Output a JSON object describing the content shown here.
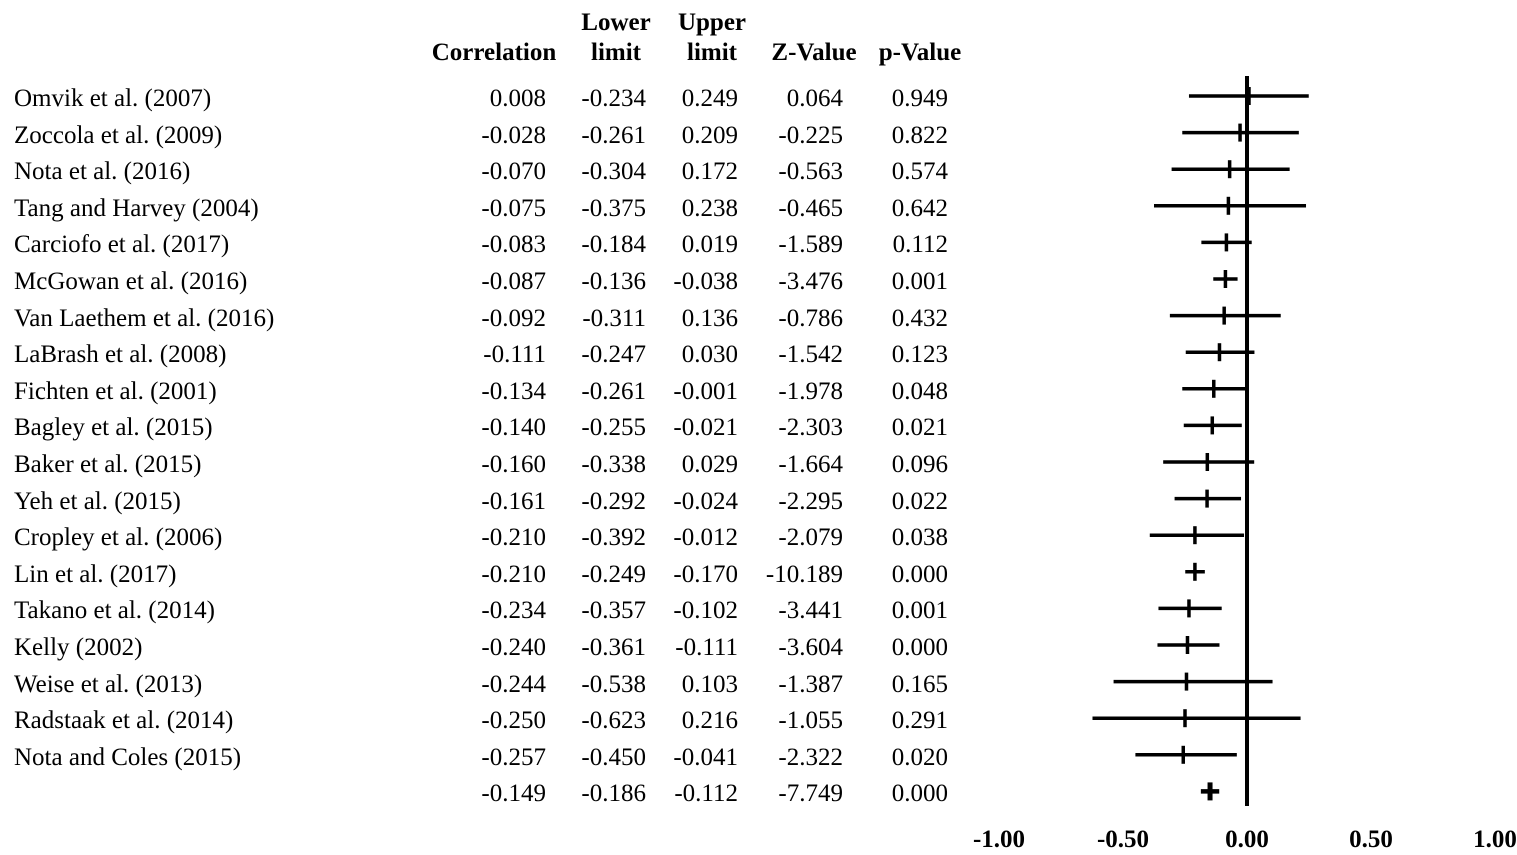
{
  "chart_data": {
    "type": "forest",
    "columns": [
      {
        "key": "correlation",
        "label": "Correlation"
      },
      {
        "key": "lower",
        "label": "Lower limit",
        "line1": "Lower",
        "line2": "limit"
      },
      {
        "key": "upper",
        "label": "Upper limit",
        "line1": "Upper",
        "line2": "limit"
      },
      {
        "key": "z",
        "label": "Z-Value"
      },
      {
        "key": "p",
        "label": "p-Value"
      }
    ],
    "rows": [
      {
        "study": "Omvik et al. (2007)",
        "correlation": "0.008",
        "lower": "-0.234",
        "upper": "0.249",
        "z": "0.064",
        "p": "0.949"
      },
      {
        "study": "Zoccola et al. (2009)",
        "correlation": "-0.028",
        "lower": "-0.261",
        "upper": "0.209",
        "z": "-0.225",
        "p": "0.822"
      },
      {
        "study": "Nota et al. (2016)",
        "correlation": "-0.070",
        "lower": "-0.304",
        "upper": "0.172",
        "z": "-0.563",
        "p": "0.574"
      },
      {
        "study": "Tang and Harvey (2004)",
        "correlation": "-0.075",
        "lower": "-0.375",
        "upper": "0.238",
        "z": "-0.465",
        "p": "0.642"
      },
      {
        "study": "Carciofo et al. (2017)",
        "correlation": "-0.083",
        "lower": "-0.184",
        "upper": "0.019",
        "z": "-1.589",
        "p": "0.112"
      },
      {
        "study": "McGowan et al. (2016)",
        "correlation": "-0.087",
        "lower": "-0.136",
        "upper": "-0.038",
        "z": "-3.476",
        "p": "0.001"
      },
      {
        "study": "Van Laethem et al. (2016)",
        "correlation": "-0.092",
        "lower": "-0.311",
        "upper": "0.136",
        "z": "-0.786",
        "p": "0.432"
      },
      {
        "study": "LaBrash et al. (2008)",
        "correlation": "-0.111",
        "lower": "-0.247",
        "upper": "0.030",
        "z": "-1.542",
        "p": "0.123"
      },
      {
        "study": "Fichten et al. (2001)",
        "correlation": "-0.134",
        "lower": "-0.261",
        "upper": "-0.001",
        "z": "-1.978",
        "p": "0.048"
      },
      {
        "study": "Bagley  et al. (2015)",
        "correlation": "-0.140",
        "lower": "-0.255",
        "upper": "-0.021",
        "z": "-2.303",
        "p": "0.021"
      },
      {
        "study": "Baker et al. (2015)",
        "correlation": "-0.160",
        "lower": "-0.338",
        "upper": "0.029",
        "z": "-1.664",
        "p": "0.096"
      },
      {
        "study": "Yeh et al. (2015)",
        "correlation": "-0.161",
        "lower": "-0.292",
        "upper": "-0.024",
        "z": "-2.295",
        "p": "0.022"
      },
      {
        "study": "Cropley et al. (2006)",
        "correlation": "-0.210",
        "lower": "-0.392",
        "upper": "-0.012",
        "z": "-2.079",
        "p": "0.038"
      },
      {
        "study": "Lin et al. (2017)",
        "correlation": "-0.210",
        "lower": "-0.249",
        "upper": "-0.170",
        "z": "-10.189",
        "p": "0.000"
      },
      {
        "study": "Takano et al. (2014)",
        "correlation": "-0.234",
        "lower": "-0.357",
        "upper": "-0.102",
        "z": "-3.441",
        "p": "0.001"
      },
      {
        "study": "Kelly (2002)",
        "correlation": "-0.240",
        "lower": "-0.361",
        "upper": "-0.111",
        "z": "-3.604",
        "p": "0.000"
      },
      {
        "study": "Weise et al. (2013)",
        "correlation": "-0.244",
        "lower": "-0.538",
        "upper": "0.103",
        "z": "-1.387",
        "p": "0.165"
      },
      {
        "study": "Radstaak et al. (2014)",
        "correlation": "-0.250",
        "lower": "-0.623",
        "upper": "0.216",
        "z": "-1.055",
        "p": "0.291"
      },
      {
        "study": "Nota and Coles (2015)",
        "correlation": "-0.257",
        "lower": "-0.450",
        "upper": "-0.041",
        "z": "-2.322",
        "p": "0.020"
      }
    ],
    "summary": {
      "study": "",
      "correlation": "-0.149",
      "lower": "-0.186",
      "upper": "-0.112",
      "z": "-7.749",
      "p": "0.000"
    },
    "xaxis": {
      "range": [
        -1.0,
        1.0
      ],
      "ticks": [
        "-1.00",
        "-0.50",
        "0.00",
        "0.50",
        "1.00"
      ],
      "reference_line": 0
    },
    "grid": false,
    "legend": "none"
  }
}
